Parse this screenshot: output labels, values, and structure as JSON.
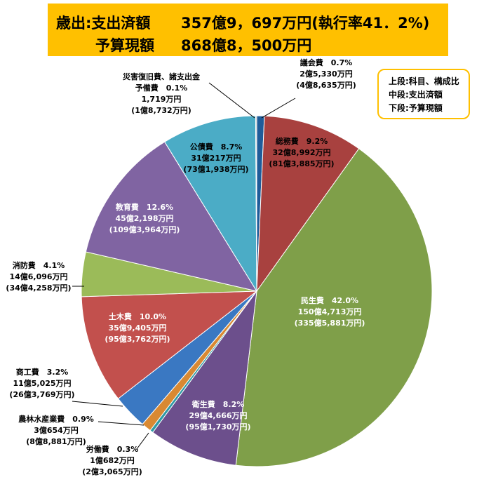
{
  "header": {
    "row1_label": "歳出:支出済額",
    "row1_value": "357億9，697万円(執行率41．2%)",
    "row2_label": "予算現額",
    "row2_value": "868億8，500万円"
  },
  "legend": {
    "line1": "上段:科目、構成比",
    "line2": "中段:支出済額",
    "line3": "下段:予算現額"
  },
  "colors": {
    "banner": "#ffc000",
    "legend_border": "#ffc000"
  },
  "chart_data": {
    "type": "pie",
    "unit": "%",
    "slices": [
      {
        "name": "議会費",
        "pct": 0.7,
        "spent": "2億5,330万円",
        "budget": "(4億8,635万円)",
        "color": "#1f5c99"
      },
      {
        "name": "総務費",
        "pct": 9.2,
        "spent": "32億8,992万円",
        "budget": "(81億3,885万円)",
        "color": "#a8413f"
      },
      {
        "name": "民生費",
        "pct": 42.0,
        "spent": "150億4,713万円",
        "budget": "(335億5,881万円)",
        "color": "#7f9f49"
      },
      {
        "name": "衛生費",
        "pct": 8.2,
        "spent": "29億4,666万円",
        "budget": "(95億1,730万円)",
        "color": "#6c4f8c"
      },
      {
        "name": "労働費",
        "pct": 0.3,
        "spent": "1億682万円",
        "budget": "(2億3,065万円)",
        "color": "#2f9aa5"
      },
      {
        "name": "農林水産業費",
        "pct": 0.9,
        "spent": "3億654万円",
        "budget": "(8億8,881万円)",
        "color": "#d98932"
      },
      {
        "name": "商工費",
        "pct": 3.2,
        "spent": "11億5,025万円",
        "budget": "(26億3,769万円)",
        "color": "#3a78c2"
      },
      {
        "name": "土木費",
        "pct": 10.0,
        "spent": "35億9,405万円",
        "budget": "(95億3,762万円)",
        "color": "#c2504d"
      },
      {
        "name": "消防費",
        "pct": 4.1,
        "spent": "14億6,096万円",
        "budget": "(34億4,258万円)",
        "color": "#9bbb59"
      },
      {
        "name": "教育費",
        "pct": 12.6,
        "spent": "45億2,198万円",
        "budget": "(109億3,964万円)",
        "color": "#8064a2"
      },
      {
        "name": "公債費",
        "pct": 8.7,
        "spent": "31億217万円",
        "budget": "(73億1,938万円)",
        "color": "#4bacc6"
      },
      {
        "name": "災害復旧費、諸支出金\n予備費",
        "pct": 0.1,
        "spent": "1,719万円",
        "budget": "(1億8,732万円)",
        "color": "#c0c0c0"
      }
    ]
  }
}
